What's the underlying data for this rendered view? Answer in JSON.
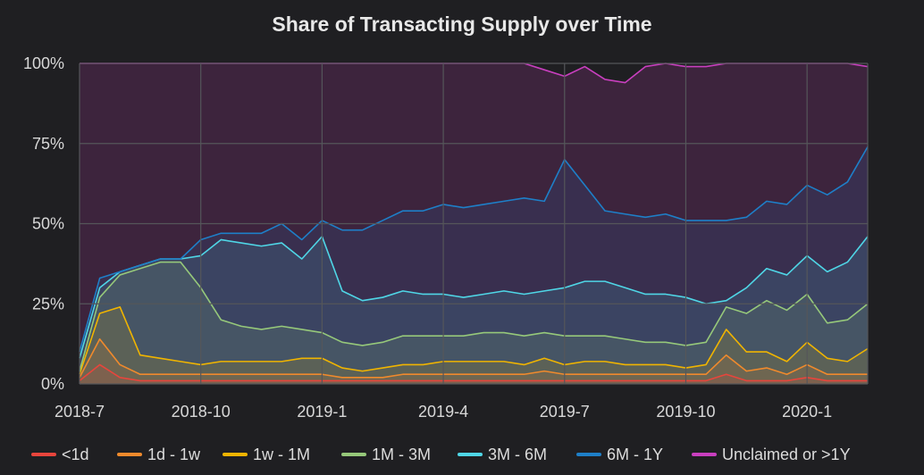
{
  "chart_data": {
    "type": "area",
    "title": "Share of Transacting Supply over Time",
    "xlabel": "",
    "ylabel": "",
    "x_ticks": [
      "2018-7",
      "2018-10",
      "2019-1",
      "2019-4",
      "2019-7",
      "2019-10",
      "2020-1"
    ],
    "y_ticks": [
      "0%",
      "25%",
      "50%",
      "75%",
      "100%"
    ],
    "ylim": [
      0,
      100
    ],
    "stacked": true,
    "grid": true,
    "legend_position": "bottom",
    "x": [
      "2018-7-01",
      "2018-7-15",
      "2018-8-01",
      "2018-8-15",
      "2018-9-01",
      "2018-9-15",
      "2018-10-01",
      "2018-10-15",
      "2018-11-01",
      "2018-11-15",
      "2018-12-01",
      "2018-12-15",
      "2019-1-01",
      "2019-1-15",
      "2019-2-01",
      "2019-2-15",
      "2019-3-01",
      "2019-3-15",
      "2019-4-01",
      "2019-4-15",
      "2019-5-01",
      "2019-5-15",
      "2019-6-01",
      "2019-6-15",
      "2019-7-01",
      "2019-7-15",
      "2019-8-01",
      "2019-8-15",
      "2019-9-01",
      "2019-9-15",
      "2019-10-01",
      "2019-10-15",
      "2019-11-01",
      "2019-11-15",
      "2019-12-01",
      "2019-12-15",
      "2020-1-01",
      "2020-1-15",
      "2020-2-01",
      "2020-2-15"
    ],
    "series": [
      {
        "name": "<1d",
        "color": "#e8453c",
        "values": [
          1,
          6,
          2,
          1,
          1,
          1,
          1,
          1,
          1,
          1,
          1,
          1,
          1,
          1,
          1,
          1,
          1,
          1,
          1,
          1,
          1,
          1,
          1,
          1,
          1,
          1,
          1,
          1,
          1,
          1,
          1,
          1,
          3,
          1,
          1,
          1,
          2,
          1,
          1,
          1
        ]
      },
      {
        "name": "1d - 1w",
        "color": "#f08a2c",
        "values": [
          1,
          8,
          4,
          2,
          2,
          2,
          2,
          2,
          2,
          2,
          2,
          2,
          2,
          1,
          1,
          1,
          2,
          2,
          2,
          2,
          2,
          2,
          2,
          3,
          2,
          2,
          2,
          2,
          2,
          2,
          2,
          2,
          6,
          3,
          4,
          2,
          4,
          2,
          2,
          2
        ]
      },
      {
        "name": "1w - 1M",
        "color": "#f0b400",
        "values": [
          1,
          8,
          18,
          6,
          5,
          4,
          3,
          4,
          4,
          4,
          4,
          5,
          5,
          3,
          2,
          3,
          3,
          3,
          4,
          4,
          4,
          4,
          3,
          4,
          3,
          4,
          4,
          3,
          3,
          3,
          2,
          3,
          8,
          6,
          5,
          4,
          7,
          5,
          4,
          8
        ]
      },
      {
        "name": "1M - 3M",
        "color": "#96c87a",
        "values": [
          1,
          5,
          10,
          27,
          30,
          31,
          24,
          13,
          11,
          10,
          11,
          9,
          8,
          8,
          8,
          8,
          9,
          9,
          8,
          8,
          9,
          9,
          9,
          8,
          9,
          8,
          8,
          8,
          7,
          7,
          7,
          7,
          7,
          12,
          16,
          16,
          15,
          11,
          13,
          14
        ]
      },
      {
        "name": "3M - 6M",
        "color": "#4fd6e6",
        "values": [
          4,
          3,
          1,
          1,
          1,
          1,
          10,
          25,
          26,
          26,
          26,
          22,
          30,
          16,
          14,
          14,
          14,
          13,
          13,
          12,
          12,
          13,
          13,
          13,
          15,
          17,
          17,
          16,
          15,
          15,
          15,
          12,
          2,
          8,
          10,
          11,
          12,
          16,
          18,
          21
        ]
      },
      {
        "name": "6M - 1Y",
        "color": "#1e7fc8",
        "values": [
          2,
          3,
          0,
          0,
          0,
          0,
          5,
          2,
          3,
          4,
          6,
          6,
          5,
          19,
          22,
          24,
          25,
          26,
          28,
          28,
          28,
          28,
          30,
          28,
          40,
          30,
          22,
          23,
          24,
          25,
          24,
          26,
          25,
          22,
          21,
          22,
          22,
          24,
          25,
          28
        ]
      },
      {
        "name": "Unclaimed or >1Y",
        "color": "#c93fbf",
        "values": [
          90,
          67,
          65,
          63,
          61,
          61,
          55,
          53,
          53,
          53,
          50,
          55,
          49,
          52,
          52,
          49,
          46,
          46,
          44,
          45,
          44,
          43,
          42,
          41,
          26,
          37,
          41,
          41,
          47,
          47,
          48,
          48,
          49,
          48,
          43,
          44,
          38,
          41,
          37,
          25
        ]
      }
    ]
  }
}
